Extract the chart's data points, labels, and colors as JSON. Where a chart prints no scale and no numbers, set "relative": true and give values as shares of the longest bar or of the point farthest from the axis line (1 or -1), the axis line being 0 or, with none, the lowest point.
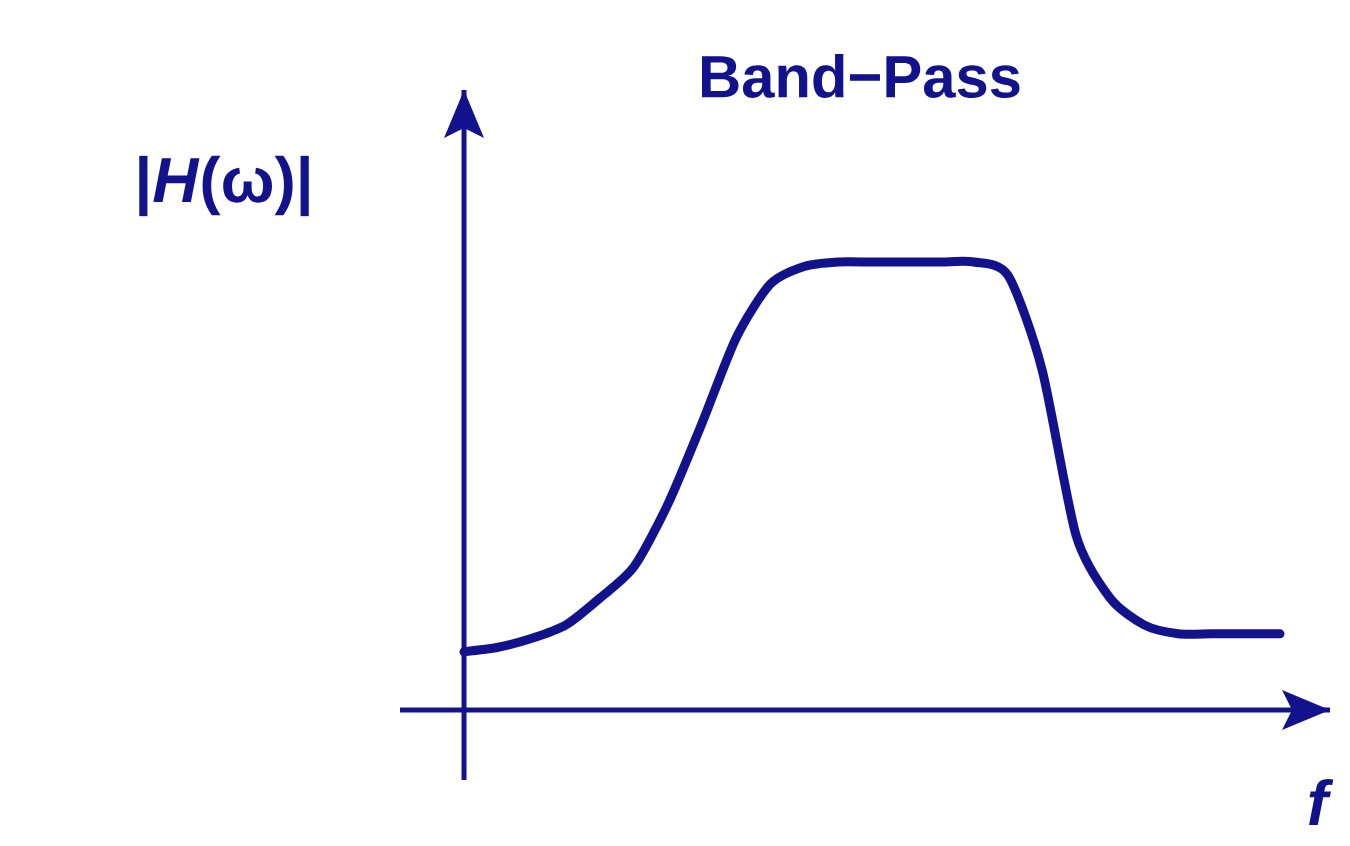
{
  "chart_data": {
    "type": "line",
    "title": "Band−Pass",
    "ylabel": "|*H*(ω)|",
    "xlabel": "*f*",
    "relative": true,
    "categories": [
      null,
      null,
      null,
      null,
      null,
      null,
      null,
      null,
      null,
      null,
      null,
      null,
      null,
      null,
      null,
      null,
      null,
      null,
      null,
      null,
      null,
      null,
      null,
      null,
      null
    ],
    "series": [
      {
        "color": "#12128c",
        "values": [
          0.13,
          0.14,
          0.16,
          0.19,
          0.25,
          0.32,
          0.46,
          0.64,
          0.83,
          0.95,
          0.99,
          1,
          1,
          1,
          1,
          1,
          0.97,
          0.76,
          0.39,
          0.25,
          0.19,
          0.17,
          0.17,
          0.17,
          0.17
        ]
      }
    ],
    "marker": "none",
    "line_style": "solid"
  }
}
